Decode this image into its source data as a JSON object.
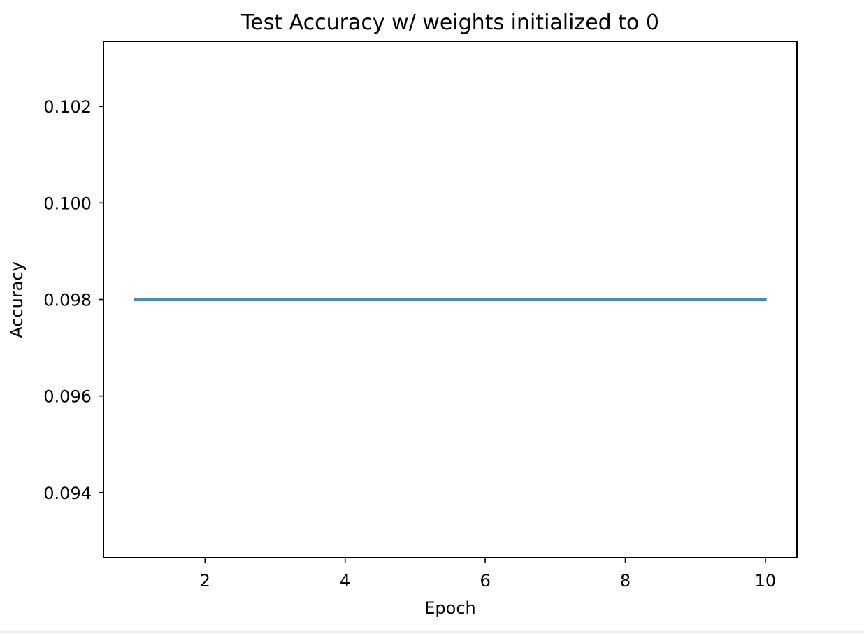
{
  "chart_data": {
    "type": "line",
    "title": "Test Accuracy w/ weights initialized to 0",
    "xlabel": "Epoch",
    "ylabel": "Accuracy",
    "xlim": [
      0.55,
      10.45
    ],
    "ylim": [
      0.09265,
      0.10335
    ],
    "xticks": [
      2,
      4,
      6,
      8,
      10
    ],
    "xtick_labels": [
      "2",
      "4",
      "6",
      "8",
      "10"
    ],
    "yticks": [
      0.094,
      0.096,
      0.098,
      0.1,
      0.102
    ],
    "ytick_labels": [
      "0.094",
      "0.096",
      "0.098",
      "0.100",
      "0.102"
    ],
    "grid": false,
    "legend": "none",
    "series": [
      {
        "color": "#4a8ab4",
        "x": [
          1,
          2,
          3,
          4,
          5,
          6,
          7,
          8,
          9,
          10
        ],
        "y": [
          0.098,
          0.098,
          0.098,
          0.098,
          0.098,
          0.098,
          0.098,
          0.098,
          0.098,
          0.098
        ]
      }
    ]
  }
}
